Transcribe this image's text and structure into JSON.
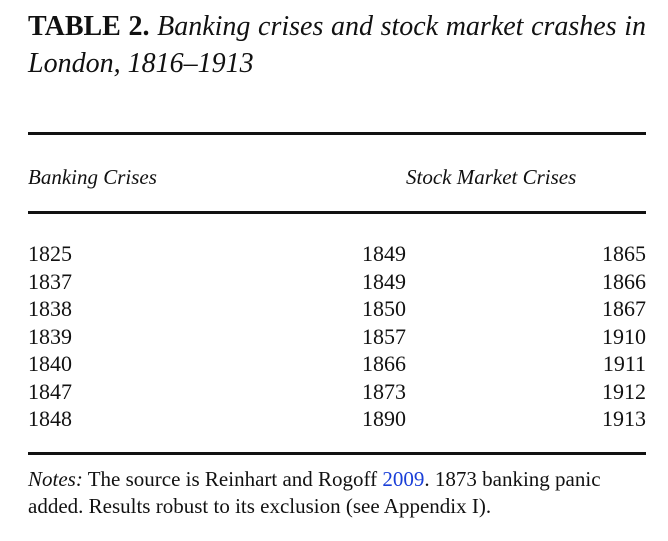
{
  "caption": {
    "label": "TABLE 2.",
    "title": "Banking crises and stock market crashes in London, 1816–1913"
  },
  "table": {
    "headers": {
      "banking": "Banking Crises",
      "stock": "Stock Market Crises"
    },
    "banking_crises": [
      "1825",
      "1837",
      "1838",
      "1839",
      "1840",
      "1847",
      "1848"
    ],
    "stock_market_crises_col1": [
      "1849",
      "1849",
      "1850",
      "1857",
      "1866",
      "1873",
      "1890"
    ],
    "stock_market_crises_col2": [
      "1865",
      "1866",
      "1867",
      "1910",
      "1911",
      "1912",
      "1913"
    ]
  },
  "notes": {
    "label": "Notes:",
    "text_before_link": " The source is Reinhart and Rogoff ",
    "link_text": "2009",
    "text_after_link": ". 1873 banking panic added. Results robust to its exclusion (see Appendix I)."
  }
}
